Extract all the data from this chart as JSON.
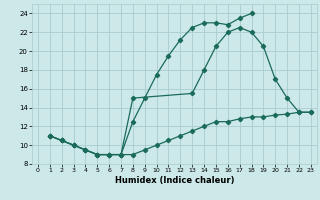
{
  "xlabel": "Humidex (Indice chaleur)",
  "bg_color": "#cce8e8",
  "grid_color": "#aacccc",
  "line_color": "#1a6b5a",
  "xlim": [
    -0.5,
    23.5
  ],
  "ylim": [
    8,
    25
  ],
  "xticks": [
    0,
    1,
    2,
    3,
    4,
    5,
    6,
    7,
    8,
    9,
    10,
    11,
    12,
    13,
    14,
    15,
    16,
    17,
    18,
    19,
    20,
    21,
    22,
    23
  ],
  "yticks": [
    8,
    10,
    12,
    14,
    16,
    18,
    20,
    22,
    24
  ],
  "line1_x": [
    1,
    2,
    3,
    4,
    5,
    6,
    7,
    8,
    9,
    10,
    11,
    12,
    13,
    14,
    15,
    16,
    17,
    18
  ],
  "line1_y": [
    11.0,
    10.5,
    10.0,
    9.5,
    9.0,
    9.0,
    9.0,
    12.5,
    15.0,
    17.5,
    19.5,
    21.2,
    22.5,
    23.0,
    23.0,
    22.8,
    23.5,
    24.0
  ],
  "line2_x": [
    1,
    2,
    3,
    4,
    5,
    6,
    7,
    8,
    13,
    14,
    15,
    16,
    17,
    18,
    19,
    20,
    21,
    22,
    23
  ],
  "line2_y": [
    11.0,
    10.5,
    10.0,
    9.5,
    9.0,
    9.0,
    9.0,
    15.0,
    15.5,
    18.0,
    20.5,
    22.0,
    22.5,
    22.0,
    20.5,
    17.0,
    15.0,
    13.5,
    13.5
  ],
  "line3_x": [
    1,
    2,
    3,
    4,
    5,
    6,
    7,
    8,
    9,
    10,
    11,
    12,
    13,
    14,
    15,
    16,
    17,
    18,
    19,
    20,
    21,
    22,
    23
  ],
  "line3_y": [
    11.0,
    10.5,
    10.0,
    9.5,
    9.0,
    9.0,
    9.0,
    9.0,
    9.5,
    10.0,
    10.5,
    11.0,
    11.5,
    12.0,
    12.5,
    12.5,
    12.8,
    13.0,
    13.0,
    13.2,
    13.3,
    13.5,
    13.5
  ]
}
